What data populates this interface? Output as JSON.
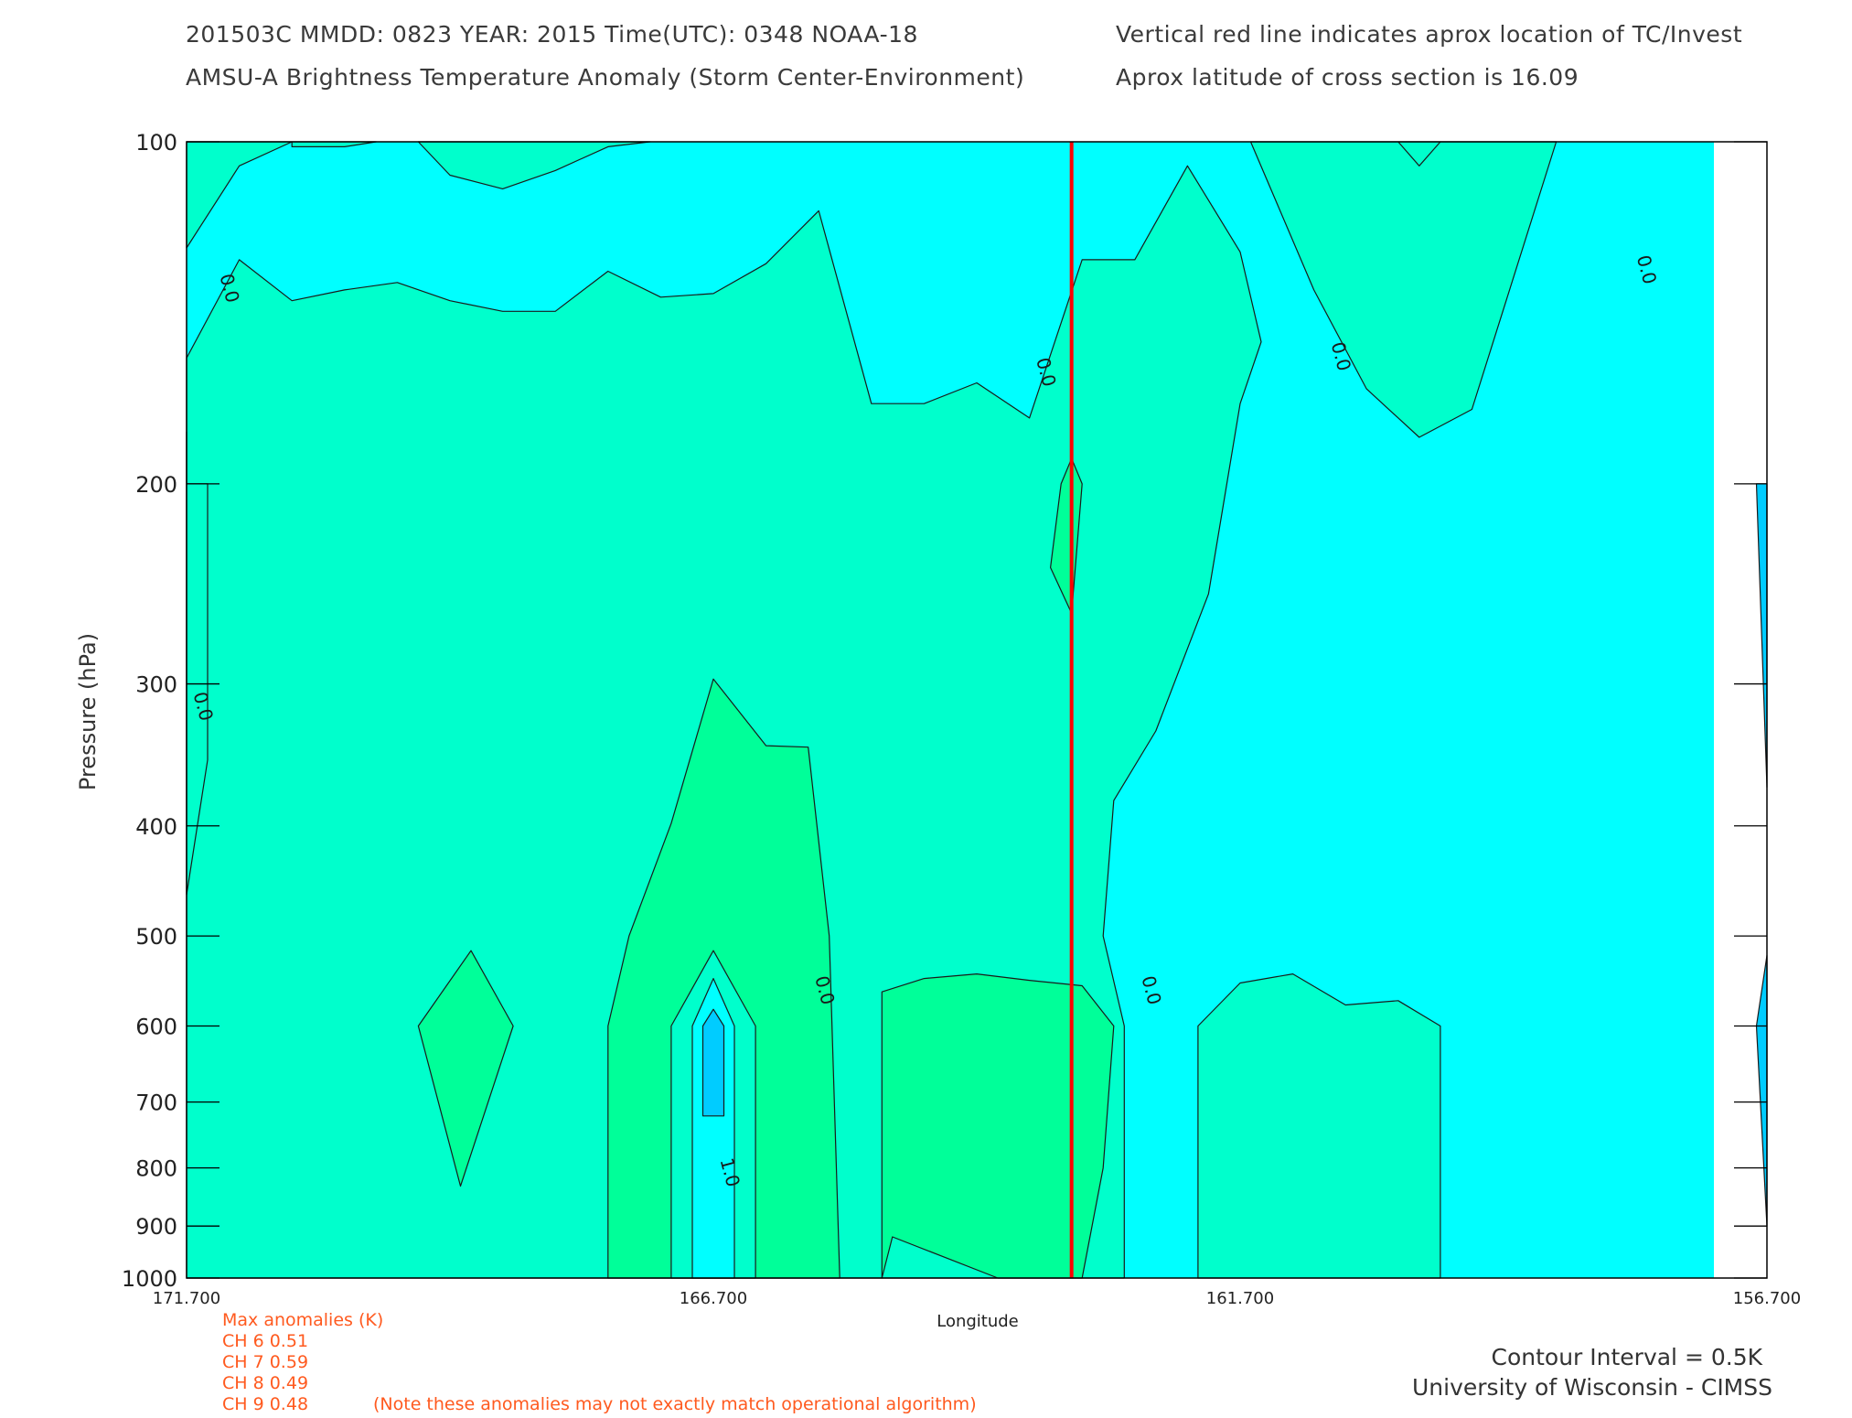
{
  "header": {
    "line1_left": "201503C  MMDD: 0823 YEAR: 2015 Time(UTC): 0348 NOAA-18",
    "line1_right": "Vertical red line indicates aprox location of TC/Invest",
    "line2_left": "AMSU-A Brightness Temperature Anomaly (Storm Center-Environment)",
    "line2_right": "Aprox latitude of cross section is 16.09"
  },
  "colors": {
    "cyan": "#00ffff",
    "turquoise": "#00ffcc",
    "green": "#00ff99",
    "sky_blue": "#00ccff",
    "storm_line": "#ff0000",
    "note_text": "#ff5a1f"
  },
  "chart_data": {
    "type": "contour",
    "xlabel": "Longitude",
    "ylabel": "Pressure (hPa)",
    "xlim": [
      171.7,
      156.7
    ],
    "ylim": [
      1000,
      100
    ],
    "y_scale": "log",
    "x_ticks": [
      "171.700",
      "166.700",
      "161.700",
      "156.700"
    ],
    "y_ticks": [
      "100",
      "200",
      "300",
      "400",
      "500",
      "600",
      "700",
      "800",
      "900",
      "1000"
    ],
    "storm_center_longitude": 163.3,
    "contour_interval_K": 0.5,
    "contour_labels": [
      {
        "text": "0.0",
        "x": 171.35,
        "y": 135
      },
      {
        "text": "0.0",
        "x": 163.6,
        "y": 160
      },
      {
        "text": "0.0",
        "x": 160.8,
        "y": 155
      },
      {
        "text": "0.0",
        "x": 157.9,
        "y": 130
      },
      {
        "text": "0.0",
        "x": 171.6,
        "y": 315
      },
      {
        "text": "0.0",
        "x": 165.7,
        "y": 560
      },
      {
        "text": "0.0",
        "x": 162.6,
        "y": 560
      },
      {
        "text": "1.0",
        "x": 166.6,
        "y": 810
      }
    ],
    "regions": [
      {
        "fill": "turquoise",
        "points": [
          [
            171.7,
            1000
          ],
          [
            171.7,
            155
          ],
          [
            171.2,
            127
          ],
          [
            170.7,
            138
          ],
          [
            170.2,
            135
          ],
          [
            169.7,
            133
          ],
          [
            169.2,
            138
          ],
          [
            168.7,
            141
          ],
          [
            168.2,
            141
          ],
          [
            167.7,
            130
          ],
          [
            167.2,
            137
          ],
          [
            166.7,
            136
          ],
          [
            166.2,
            128
          ],
          [
            165.7,
            115
          ],
          [
            165.2,
            170
          ],
          [
            164.7,
            170
          ],
          [
            164.2,
            163
          ],
          [
            163.7,
            175
          ],
          [
            163.2,
            127
          ],
          [
            162.7,
            127
          ],
          [
            162.2,
            105
          ],
          [
            161.7,
            125
          ],
          [
            161.5,
            150
          ],
          [
            161.7,
            170
          ],
          [
            162.0,
            250
          ],
          [
            162.5,
            330
          ],
          [
            162.9,
            380
          ],
          [
            163.0,
            500
          ],
          [
            162.8,
            600
          ],
          [
            162.8,
            1000
          ]
        ]
      },
      {
        "fill": "turquoise",
        "points": [
          [
            171.7,
            100
          ],
          [
            171.7,
            124
          ],
          [
            171.2,
            105
          ],
          [
            170.7,
            100
          ]
        ]
      },
      {
        "fill": "turquoise",
        "points": [
          [
            170.7,
            100
          ],
          [
            170.7,
            101
          ],
          [
            170.2,
            101
          ],
          [
            169.9,
            100
          ]
        ]
      },
      {
        "fill": "turquoise",
        "points": [
          [
            169.5,
            100
          ],
          [
            169.2,
            107
          ],
          [
            168.7,
            110
          ],
          [
            168.2,
            106
          ],
          [
            167.7,
            101
          ],
          [
            167.3,
            100
          ]
        ]
      },
      {
        "fill": "turquoise",
        "points": [
          [
            161.6,
            100
          ],
          [
            161.0,
            135
          ],
          [
            160.5,
            165
          ],
          [
            160.0,
            182
          ],
          [
            159.5,
            172
          ],
          [
            158.7,
            100
          ],
          [
            160.2,
            100
          ],
          [
            160.0,
            105
          ],
          [
            159.8,
            100
          ]
        ]
      },
      {
        "fill": "turquoise",
        "points": [
          [
            162.1,
            1000
          ],
          [
            162.1,
            600
          ],
          [
            161.7,
            550
          ],
          [
            161.2,
            540
          ],
          [
            160.7,
            575
          ],
          [
            160.2,
            570
          ],
          [
            159.8,
            600
          ],
          [
            159.8,
            1000
          ]
        ]
      },
      {
        "fill": "green",
        "points": [
          [
            167.7,
            1000
          ],
          [
            167.7,
            600
          ],
          [
            167.5,
            500
          ],
          [
            167.1,
            398
          ],
          [
            166.7,
            297
          ],
          [
            166.2,
            340
          ],
          [
            165.8,
            341
          ],
          [
            165.6,
            500
          ],
          [
            165.5,
            1000
          ]
        ]
      },
      {
        "fill": "green",
        "points": [
          [
            165.1,
            1000
          ],
          [
            165.1,
            560
          ],
          [
            164.7,
            545
          ],
          [
            164.2,
            540
          ],
          [
            163.7,
            547
          ],
          [
            163.2,
            553
          ],
          [
            162.9,
            600
          ],
          [
            163.0,
            800
          ],
          [
            163.2,
            1000
          ],
          [
            164.0,
            1000
          ],
          [
            165.0,
            920
          ]
        ]
      },
      {
        "fill": "turquoise",
        "points": [
          [
            167.1,
            1000
          ],
          [
            167.1,
            600
          ],
          [
            166.7,
            515
          ],
          [
            166.3,
            600
          ],
          [
            166.3,
            1000
          ]
        ]
      },
      {
        "fill": "cyan",
        "points": [
          [
            166.9,
            1000
          ],
          [
            166.9,
            600
          ],
          [
            166.7,
            545
          ],
          [
            166.5,
            600
          ],
          [
            166.5,
            1000
          ]
        ]
      },
      {
        "fill": "sky_blue",
        "points": [
          [
            166.8,
            720
          ],
          [
            166.8,
            600
          ],
          [
            166.7,
            580
          ],
          [
            166.6,
            600
          ],
          [
            166.6,
            720
          ]
        ]
      },
      {
        "fill": "green",
        "points": [
          [
            169.5,
            600
          ],
          [
            169.0,
            515
          ],
          [
            168.6,
            600
          ],
          [
            169.1,
            830
          ]
        ]
      },
      {
        "fill": "green",
        "points": [
          [
            163.5,
            237
          ],
          [
            163.4,
            200
          ],
          [
            163.3,
            190
          ],
          [
            163.2,
            200
          ],
          [
            163.3,
            260
          ]
        ]
      },
      {
        "fill": "turquoise",
        "points": [
          [
            171.7,
            180
          ],
          [
            171.7,
            200
          ],
          [
            171.5,
            200
          ],
          [
            171.5,
            350
          ],
          [
            171.7,
            460
          ]
        ]
      },
      {
        "fill": "sky_blue",
        "points": [
          [
            156.7,
            200
          ],
          [
            156.7,
            370
          ],
          [
            156.8,
            200
          ]
        ]
      },
      {
        "fill": "sky_blue",
        "points": [
          [
            156.7,
            520
          ],
          [
            156.7,
            900
          ],
          [
            156.8,
            600
          ]
        ]
      }
    ]
  },
  "max_anomalies": {
    "title": "Max anomalies (K)",
    "rows": [
      "CH 6  0.51",
      "CH 7  0.59",
      "CH 8  0.49",
      "CH 9  0.48"
    ],
    "note": "(Note these anomalies may not exactly match operational algorithm)"
  },
  "footer": {
    "contour_interval": "Contour Interval = 0.5K",
    "credit": "University of Wisconsin - CIMSS"
  }
}
